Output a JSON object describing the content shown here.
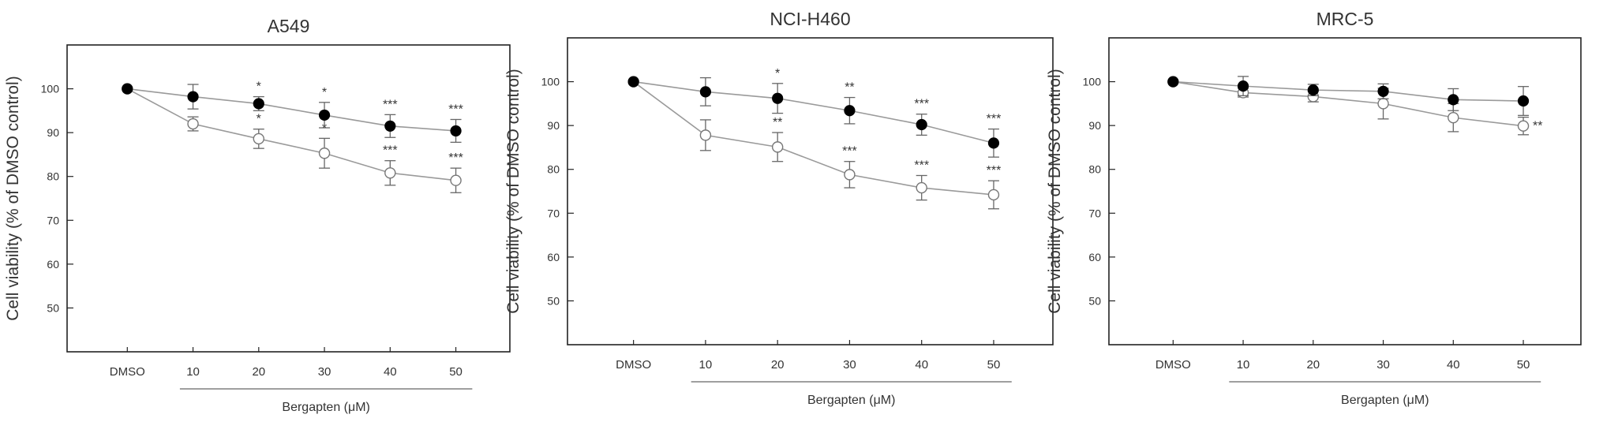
{
  "chart_data": [
    {
      "type": "line",
      "title": "A549",
      "ylabel": "Cell viability (% of DMSO control)",
      "xlabel": "Bergapten (μM)",
      "categories": [
        "DMSO",
        "10",
        "20",
        "30",
        "40",
        "50"
      ],
      "yticks": [
        50,
        60,
        70,
        80,
        90,
        100
      ],
      "ylim": [
        40,
        110
      ],
      "grid": false,
      "series": [
        {
          "style": "filled",
          "values": [
            100,
            98.2,
            96.6,
            94.0,
            91.5,
            90.4
          ],
          "err": [
            0,
            2.8,
            1.6,
            2.9,
            2.6,
            2.6
          ],
          "annotations": [
            "",
            "",
            "*",
            "*",
            "***",
            "***"
          ]
        },
        {
          "style": "open",
          "values": [
            100,
            92.0,
            88.6,
            85.3,
            80.8,
            79.1
          ],
          "err": [
            0,
            1.6,
            2.2,
            3.4,
            2.8,
            2.8
          ],
          "annotations": [
            "",
            "",
            "*",
            "*",
            "***",
            "***"
          ]
        }
      ]
    },
    {
      "type": "line",
      "title": "NCI-H460",
      "ylabel": "Cell viability (% of DMSO control)",
      "xlabel": "Bergapten (μM)",
      "categories": [
        "DMSO",
        "10",
        "20",
        "30",
        "40",
        "50"
      ],
      "yticks": [
        50,
        60,
        70,
        80,
        90,
        100
      ],
      "ylim": [
        40,
        110
      ],
      "grid": false,
      "series": [
        {
          "style": "filled",
          "values": [
            100,
            97.7,
            96.2,
            93.4,
            90.2,
            86.0
          ],
          "err": [
            0,
            3.2,
            3.4,
            3.0,
            2.4,
            3.2
          ],
          "annotations": [
            "",
            "",
            "*",
            "**",
            "***",
            "***"
          ]
        },
        {
          "style": "open",
          "values": [
            100,
            87.8,
            85.1,
            78.8,
            75.8,
            74.2
          ],
          "err": [
            0,
            3.5,
            3.3,
            3.0,
            2.8,
            3.2
          ],
          "annotations": [
            "",
            "",
            "**",
            "***",
            "***",
            "***"
          ]
        }
      ]
    },
    {
      "type": "line",
      "title": "MRC-5",
      "ylabel": "Cell viability (% of DMSO control)",
      "xlabel": "Bergapten (μM)",
      "categories": [
        "DMSO",
        "10",
        "20",
        "30",
        "40",
        "50"
      ],
      "yticks": [
        50,
        60,
        70,
        80,
        90,
        100
      ],
      "ylim": [
        40,
        110
      ],
      "grid": false,
      "series": [
        {
          "style": "filled",
          "values": [
            100,
            99.0,
            98.1,
            97.8,
            95.9,
            95.6
          ],
          "err": [
            0,
            2.2,
            1.3,
            1.7,
            2.5,
            3.3
          ],
          "annotations": [
            "",
            "",
            "",
            "",
            "",
            ""
          ]
        },
        {
          "style": "open",
          "values": [
            100,
            97.5,
            96.6,
            95.0,
            91.8,
            89.9
          ],
          "err": [
            0,
            1.0,
            1.2,
            3.5,
            3.2,
            2.0
          ],
          "annotations": [
            "",
            "",
            "",
            "",
            "",
            "**"
          ]
        }
      ]
    }
  ]
}
